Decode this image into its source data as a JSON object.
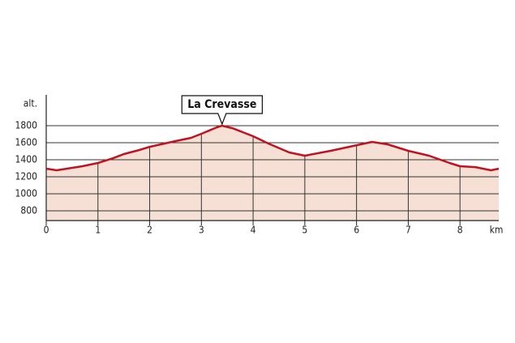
{
  "chart_data": {
    "type": "area",
    "y_label": "alt.",
    "x_label": "km",
    "x": [
      0,
      0.2,
      0.7,
      1.0,
      1.3,
      1.5,
      1.8,
      2.0,
      2.5,
      2.8,
      3.0,
      3.3,
      3.4,
      3.6,
      4.0,
      4.3,
      4.7,
      5.0,
      5.5,
      6.0,
      6.3,
      6.6,
      7.0,
      7.4,
      7.8,
      8.0,
      8.3,
      8.6,
      8.75
    ],
    "values": [
      1295,
      1276,
      1324,
      1362,
      1420,
      1467,
      1514,
      1552,
      1619,
      1657,
      1705,
      1781,
      1800,
      1771,
      1676,
      1590,
      1486,
      1448,
      1505,
      1571,
      1610,
      1581,
      1505,
      1448,
      1362,
      1324,
      1314,
      1276,
      1295
    ],
    "color": "#c1121f",
    "fill": "#f6e0d6",
    "xlim": [
      0,
      8.75
    ],
    "xticks": [
      0,
      1,
      2,
      3,
      4,
      5,
      6,
      7,
      8
    ],
    "ylim": [
      686,
      2162
    ],
    "yticks": [
      800,
      1000,
      1200,
      1400,
      1600,
      1800
    ],
    "grid": true,
    "annotation": {
      "text": "La Crevasse",
      "x": 3.4
    }
  }
}
